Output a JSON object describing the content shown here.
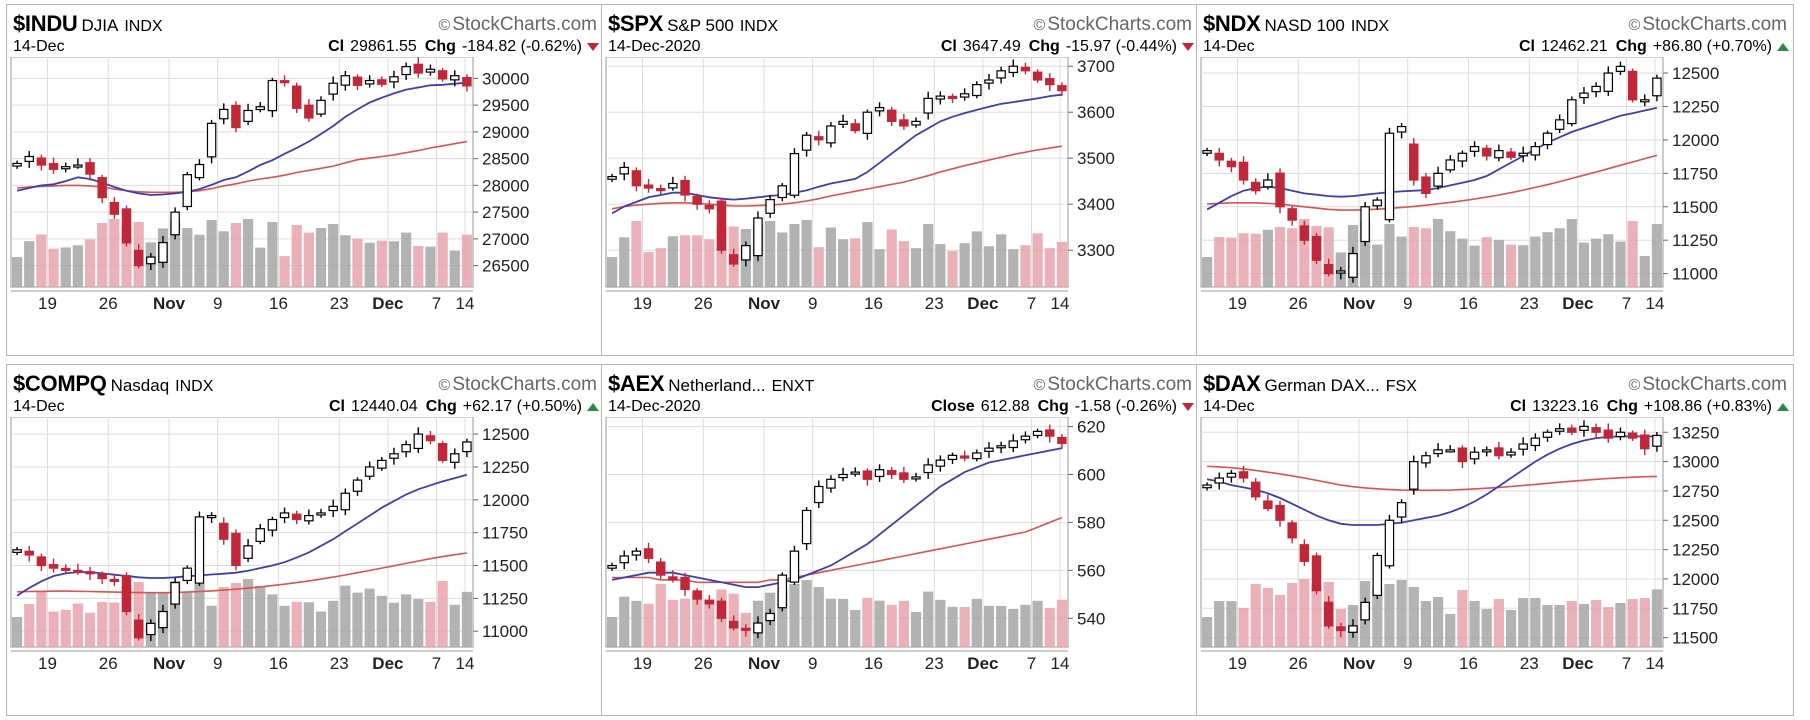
{
  "x_ticks": [
    "19",
    "26",
    "Nov",
    "9",
    "16",
    "23",
    "Dec",
    "7",
    "14"
  ],
  "colors": {
    "up_candle": "#ffffff",
    "down_candle": "#c0283a",
    "ma20": "#3c3fb0",
    "ma50": "#d9534f",
    "vol_up": "#a6a6a6",
    "vol_down": "#e6a5ab",
    "grid": "#dddddd"
  },
  "watermark": "StockCharts.com",
  "chart_data": [
    {
      "type": "candlestick",
      "symbol": "$INDU",
      "name": "DJIA",
      "exchange": "INDX",
      "date": "14-Dec",
      "close_label": "Cl",
      "close": "29861.55",
      "chg_label": "Chg",
      "chg": "-184.82 (-0.62%)",
      "direction": "down",
      "yticks": [
        30000,
        29500,
        29000,
        28500,
        28000,
        27500,
        27000,
        26500
      ],
      "ylim": [
        26100,
        30400
      ],
      "close_path": [
        28410,
        28540,
        28380,
        28300,
        28350,
        28380,
        28210,
        27770,
        27460,
        26925,
        26500,
        26660,
        26930,
        27500,
        28200,
        28390,
        29160,
        29420,
        29080,
        29400,
        29470,
        29960,
        29950,
        29440,
        29260,
        29590,
        29910,
        30050,
        29870,
        29960,
        29890,
        30030,
        30220,
        30100,
        30170,
        29990,
        30050,
        29860
      ],
      "ma20": [
        27900,
        27950,
        28000,
        28020,
        28080,
        28150,
        28120,
        28050,
        27970,
        27900,
        27850,
        27820,
        27830,
        27850,
        27880,
        27930,
        28010,
        28100,
        28150,
        28260,
        28380,
        28470,
        28590,
        28700,
        28820,
        28960,
        29110,
        29280,
        29420,
        29550,
        29640,
        29720,
        29790,
        29830,
        29870,
        29880,
        29900,
        29920
      ],
      "ma50": [
        27950,
        27970,
        27980,
        27990,
        28000,
        28000,
        27990,
        27970,
        27930,
        27900,
        27880,
        27870,
        27870,
        27870,
        27880,
        27900,
        27940,
        27990,
        28030,
        28080,
        28120,
        28150,
        28190,
        28240,
        28280,
        28320,
        28360,
        28420,
        28480,
        28510,
        28540,
        28570,
        28610,
        28650,
        28700,
        28740,
        28780,
        28820
      ]
    },
    {
      "type": "candlestick",
      "symbol": "$SPX",
      "name": "S&P 500",
      "exchange": "INDX",
      "date": "14-Dec-2020",
      "close_label": "Cl",
      "close": "3647.49",
      "chg_label": "Chg",
      "chg": "-15.97 (-0.44%)",
      "direction": "down",
      "yticks": [
        3700,
        3600,
        3500,
        3400,
        3300
      ],
      "ylim": [
        3220,
        3720
      ],
      "close_path": [
        3460,
        3480,
        3440,
        3435,
        3430,
        3445,
        3420,
        3400,
        3390,
        3300,
        3270,
        3310,
        3370,
        3410,
        3440,
        3510,
        3550,
        3540,
        3570,
        3580,
        3560,
        3600,
        3610,
        3580,
        3570,
        3580,
        3630,
        3635,
        3630,
        3640,
        3660,
        3670,
        3690,
        3700,
        3690,
        3670,
        3660,
        3647
      ],
      "ma20": [
        3380,
        3395,
        3405,
        3415,
        3420,
        3425,
        3425,
        3420,
        3415,
        3412,
        3410,
        3412,
        3415,
        3418,
        3420,
        3425,
        3430,
        3438,
        3445,
        3450,
        3455,
        3470,
        3490,
        3510,
        3530,
        3550,
        3565,
        3580,
        3590,
        3598,
        3605,
        3612,
        3618,
        3622,
        3626,
        3630,
        3635,
        3638
      ],
      "ma50": [
        3390,
        3395,
        3398,
        3400,
        3402,
        3403,
        3403,
        3402,
        3400,
        3398,
        3396,
        3396,
        3397,
        3398,
        3400,
        3403,
        3407,
        3412,
        3418,
        3423,
        3428,
        3433,
        3438,
        3443,
        3448,
        3455,
        3462,
        3470,
        3477,
        3484,
        3490,
        3496,
        3502,
        3508,
        3513,
        3518,
        3522,
        3526
      ]
    },
    {
      "type": "candlestick",
      "symbol": "$NDX",
      "name": "NASD 100",
      "exchange": "INDX",
      "date": "14-Dec",
      "close_label": "Cl",
      "close": "12462.21",
      "chg_label": "Chg",
      "chg": "+86.80 (+0.70%)",
      "direction": "up",
      "yticks": [
        12500,
        12250,
        12000,
        11750,
        11500,
        11250,
        11000
      ],
      "ylim": [
        10900,
        12620
      ],
      "close_path": [
        11920,
        11850,
        11800,
        11700,
        11620,
        11700,
        11500,
        11400,
        11250,
        11100,
        11000,
        11020,
        11150,
        11500,
        11550,
        12050,
        12100,
        11700,
        11600,
        11750,
        11850,
        11900,
        11950,
        11880,
        11920,
        11870,
        11900,
        11950,
        12050,
        12150,
        12300,
        12350,
        12400,
        12500,
        12550,
        12300,
        12300,
        12462
      ],
      "ma20": [
        11480,
        11530,
        11580,
        11620,
        11640,
        11650,
        11640,
        11620,
        11600,
        11590,
        11580,
        11575,
        11580,
        11590,
        11600,
        11610,
        11615,
        11620,
        11625,
        11640,
        11660,
        11680,
        11700,
        11730,
        11780,
        11830,
        11880,
        11930,
        11980,
        12020,
        12060,
        12090,
        12120,
        12150,
        12180,
        12200,
        12220,
        12240
      ],
      "ma50": [
        11520,
        11525,
        11530,
        11530,
        11530,
        11525,
        11520,
        11510,
        11500,
        11490,
        11480,
        11475,
        11475,
        11478,
        11482,
        11488,
        11495,
        11503,
        11512,
        11522,
        11533,
        11545,
        11558,
        11572,
        11588,
        11605,
        11625,
        11645,
        11665,
        11688,
        11712,
        11736,
        11760,
        11785,
        11810,
        11835,
        11860,
        11885
      ]
    },
    {
      "type": "candlestick",
      "symbol": "$COMPQ",
      "name": "Nasdaq",
      "exchange": "INDX",
      "date": "14-Dec",
      "close_label": "Cl",
      "close": "12440.04",
      "chg_label": "Chg",
      "chg": "+62.17 (+0.50%)",
      "direction": "up",
      "yticks": [
        12500,
        12250,
        12000,
        11750,
        11500,
        11250,
        11000
      ],
      "ylim": [
        10880,
        12630
      ],
      "close_path": [
        11620,
        11580,
        11500,
        11480,
        11470,
        11450,
        11440,
        11400,
        11380,
        11150,
        10950,
        11060,
        11150,
        11370,
        11480,
        11870,
        11880,
        11700,
        11500,
        11650,
        11780,
        11850,
        11900,
        11850,
        11880,
        11900,
        11950,
        12050,
        12150,
        12250,
        12300,
        12350,
        12420,
        12500,
        12450,
        12300,
        12350,
        12440
      ],
      "ma20": [
        11270,
        11330,
        11380,
        11420,
        11440,
        11450,
        11450,
        11440,
        11430,
        11420,
        11410,
        11405,
        11405,
        11410,
        11418,
        11425,
        11432,
        11438,
        11445,
        11460,
        11480,
        11500,
        11525,
        11560,
        11600,
        11650,
        11700,
        11760,
        11820,
        11880,
        11940,
        11990,
        12040,
        12080,
        12110,
        12140,
        12165,
        12190
      ],
      "ma50": [
        11300,
        11302,
        11303,
        11305,
        11305,
        11304,
        11302,
        11300,
        11298,
        11296,
        11294,
        11293,
        11293,
        11295,
        11298,
        11302,
        11307,
        11313,
        11320,
        11328,
        11337,
        11347,
        11358,
        11370,
        11383,
        11397,
        11412,
        11428,
        11445,
        11462,
        11480,
        11498,
        11516,
        11534,
        11552,
        11568,
        11582,
        11595
      ]
    },
    {
      "type": "candlestick",
      "symbol": "$AEX",
      "name": "Netherland...",
      "exchange": "ENXT",
      "date": "14-Dec-2020",
      "close_label": "Close",
      "close": "612.88",
      "chg_label": "Chg",
      "chg": "-1.58 (-0.26%)",
      "direction": "down",
      "yticks": [
        620,
        600,
        580,
        560,
        540
      ],
      "ylim": [
        528,
        624
      ],
      "close_path": [
        562,
        566,
        568,
        565,
        558,
        556,
        552,
        548,
        546,
        540,
        536,
        535,
        538,
        542,
        558,
        568,
        585,
        595,
        598,
        600,
        601,
        598,
        602,
        600,
        598,
        599,
        604,
        606,
        608,
        607,
        609,
        611,
        612,
        614,
        616,
        618,
        616,
        613
      ],
      "ma20": [
        556,
        557,
        558,
        559,
        559,
        559,
        558,
        557,
        556,
        555,
        554,
        553,
        553,
        554,
        555,
        556,
        558,
        560,
        562,
        565,
        568,
        571,
        575,
        579,
        583,
        587,
        591,
        595,
        598,
        601,
        603,
        605,
        606,
        607,
        608,
        609,
        610,
        611
      ],
      "ma50": [
        557,
        557,
        557,
        557,
        556,
        556,
        556,
        555,
        555,
        555,
        555,
        555,
        555,
        556,
        556,
        557,
        558,
        559,
        560,
        561,
        562,
        563,
        564,
        565,
        566,
        567,
        568,
        569,
        570,
        571,
        572,
        573,
        574,
        575,
        576,
        578,
        580,
        582
      ]
    },
    {
      "type": "candlestick",
      "symbol": "$DAX",
      "name": "German DAX...",
      "exchange": "FSX",
      "date": "14-Dec",
      "close_label": "Cl",
      "close": "13223.16",
      "chg_label": "Chg",
      "chg": "+108.86 (+0.83%)",
      "direction": "up",
      "yticks": [
        13250,
        13000,
        12750,
        12500,
        12250,
        12000,
        11750,
        11500
      ],
      "ylim": [
        11420,
        13380
      ],
      "close_path": [
        12800,
        12860,
        12900,
        12860,
        12700,
        12600,
        12500,
        12350,
        12150,
        11900,
        11600,
        11560,
        11600,
        11800,
        12200,
        12500,
        12650,
        13000,
        13050,
        13100,
        13100,
        13000,
        13080,
        13100,
        13050,
        13080,
        13150,
        13200,
        13250,
        13280,
        13250,
        13300,
        13250,
        13200,
        13250,
        13200,
        13110,
        13223
      ],
      "ma20": [
        12850,
        12830,
        12800,
        12780,
        12760,
        12730,
        12690,
        12640,
        12590,
        12540,
        12500,
        12470,
        12460,
        12460,
        12460,
        12470,
        12480,
        12500,
        12520,
        12540,
        12570,
        12610,
        12660,
        12720,
        12790,
        12860,
        12930,
        13000,
        13060,
        13110,
        13150,
        13180,
        13200,
        13210,
        13215,
        13215,
        13215,
        13215
      ],
      "ma50": [
        12960,
        12955,
        12948,
        12938,
        12925,
        12910,
        12895,
        12878,
        12860,
        12840,
        12820,
        12800,
        12786,
        12776,
        12768,
        12762,
        12758,
        12756,
        12755,
        12756,
        12758,
        12762,
        12767,
        12773,
        12780,
        12788,
        12797,
        12806,
        12815,
        12824,
        12833,
        12841,
        12849,
        12856,
        12862,
        12867,
        12871,
        12874
      ]
    }
  ]
}
